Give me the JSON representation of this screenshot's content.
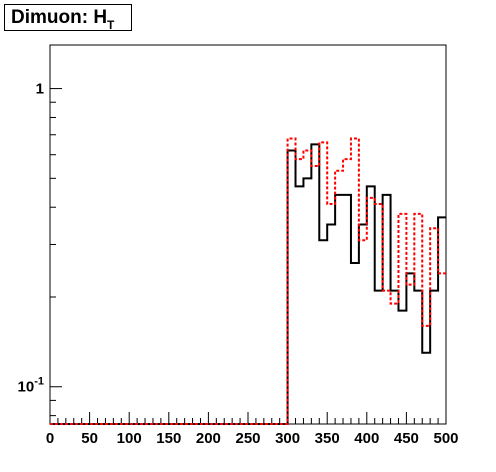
{
  "title": {
    "main": "Dimuon: H",
    "sub": "T"
  },
  "chart_data": {
    "type": "step-histogram",
    "title": "Dimuon: H_T",
    "xlabel": "",
    "ylabel": "",
    "xlim": [
      0,
      500
    ],
    "ylim": [
      0.075,
      1.4
    ],
    "yscale": "log",
    "grid": false,
    "x_ticks": [
      "0",
      "50",
      "100",
      "150",
      "200",
      "250",
      "300",
      "350",
      "400",
      "450",
      "500"
    ],
    "y_ticks": [
      {
        "value": 1,
        "label": "1"
      },
      {
        "value": 0.1,
        "label": "10",
        "exponent": "-1"
      }
    ],
    "bin_edges": [
      0,
      10,
      20,
      30,
      40,
      50,
      60,
      70,
      80,
      90,
      100,
      110,
      120,
      130,
      140,
      150,
      160,
      170,
      180,
      190,
      200,
      210,
      220,
      230,
      240,
      250,
      260,
      270,
      280,
      290,
      300,
      310,
      320,
      330,
      340,
      350,
      360,
      370,
      380,
      390,
      400,
      410,
      420,
      430,
      440,
      450,
      460,
      470,
      480,
      490,
      500
    ],
    "series": [
      {
        "color": "#000000",
        "style": "solid",
        "values": [
          0,
          0,
          0,
          0,
          0,
          0,
          0,
          0,
          0,
          0,
          0,
          0,
          0,
          0,
          0,
          0,
          0,
          0,
          0,
          0,
          0,
          0,
          0,
          0,
          0,
          0,
          0,
          0,
          0,
          0,
          0.62,
          0.47,
          0.5,
          0.65,
          0.31,
          0.35,
          0.44,
          0.44,
          0.26,
          0.35,
          0.47,
          0.21,
          0.44,
          0.21,
          0.18,
          0.24,
          0.21,
          0.13,
          0.21,
          0.37
        ]
      },
      {
        "color": "#ff0000",
        "style": "dashed",
        "values": [
          0,
          0,
          0,
          0,
          0,
          0,
          0,
          0,
          0,
          0,
          0,
          0,
          0,
          0,
          0,
          0,
          0,
          0,
          0,
          0,
          0,
          0,
          0,
          0,
          0,
          0,
          0,
          0,
          0,
          0,
          0.68,
          0.58,
          0.62,
          0.55,
          0.66,
          0.41,
          0.53,
          0.58,
          0.68,
          0.31,
          0.43,
          0.41,
          0.21,
          0.19,
          0.38,
          0.22,
          0.38,
          0.16,
          0.34,
          0.24
        ]
      }
    ]
  }
}
